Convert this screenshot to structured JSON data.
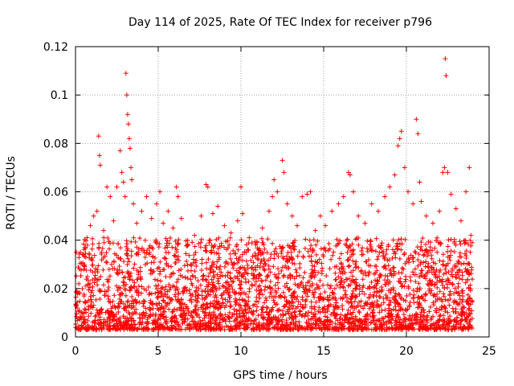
{
  "chart_data": {
    "type": "scatter",
    "title": "Day 114 of 2025, Rate Of TEC Index for receiver p796",
    "xlabel": "GPS time / hours",
    "ylabel": "ROTI / TECUs",
    "xlim": [
      0,
      25
    ],
    "ylim": [
      0,
      0.12
    ],
    "x_ticks": [
      0,
      5,
      10,
      15,
      20,
      25
    ],
    "x_tick_labels": [
      "0",
      "5",
      "10",
      "15",
      "20",
      "25"
    ],
    "y_ticks": [
      0,
      0.02,
      0.04,
      0.06,
      0.08,
      0.1,
      0.12
    ],
    "y_tick_labels": [
      "0",
      "0.02",
      "0.04",
      "0.06",
      "0.08",
      "0.1",
      "0.12"
    ],
    "grid": true,
    "marker": "+",
    "series_color": "#ff0000",
    "series": [
      {
        "name": "ROTI",
        "points": [
          [
            0.1,
            0.012
          ],
          [
            0.2,
            0.022
          ],
          [
            0.3,
            0.035
          ],
          [
            0.5,
            0.028
          ],
          [
            0.7,
            0.041
          ],
          [
            0.9,
            0.046
          ],
          [
            1.1,
            0.05
          ],
          [
            1.3,
            0.052
          ],
          [
            1.4,
            0.083
          ],
          [
            1.45,
            0.075
          ],
          [
            1.5,
            0.071
          ],
          [
            1.7,
            0.044
          ],
          [
            1.9,
            0.062
          ],
          [
            2.1,
            0.058
          ],
          [
            2.3,
            0.048
          ],
          [
            2.5,
            0.062
          ],
          [
            2.7,
            0.077
          ],
          [
            2.8,
            0.068
          ],
          [
            2.9,
            0.064
          ],
          [
            3.0,
            0.058
          ],
          [
            3.05,
            0.109
          ],
          [
            3.1,
            0.1
          ],
          [
            3.15,
            0.092
          ],
          [
            3.2,
            0.088
          ],
          [
            3.25,
            0.082
          ],
          [
            3.3,
            0.078
          ],
          [
            3.35,
            0.07
          ],
          [
            3.4,
            0.065
          ],
          [
            3.5,
            0.055
          ],
          [
            3.7,
            0.047
          ],
          [
            4.0,
            0.052
          ],
          [
            4.3,
            0.058
          ],
          [
            4.6,
            0.049
          ],
          [
            4.9,
            0.055
          ],
          [
            5.1,
            0.06
          ],
          [
            5.3,
            0.047
          ],
          [
            5.6,
            0.052
          ],
          [
            5.9,
            0.045
          ],
          [
            6.1,
            0.062
          ],
          [
            6.2,
            0.058
          ],
          [
            6.4,
            0.049
          ],
          [
            6.8,
            0.038
          ],
          [
            7.2,
            0.042
          ],
          [
            7.6,
            0.05
          ],
          [
            7.9,
            0.063
          ],
          [
            8.0,
            0.062
          ],
          [
            8.3,
            0.051
          ],
          [
            8.6,
            0.054
          ],
          [
            9.0,
            0.046
          ],
          [
            9.4,
            0.043
          ],
          [
            9.8,
            0.048
          ],
          [
            10.0,
            0.062
          ],
          [
            10.1,
            0.051
          ],
          [
            10.5,
            0.041
          ],
          [
            10.9,
            0.038
          ],
          [
            11.3,
            0.045
          ],
          [
            11.7,
            0.052
          ],
          [
            11.9,
            0.058
          ],
          [
            12.0,
            0.065
          ],
          [
            12.2,
            0.06
          ],
          [
            12.5,
            0.073
          ],
          [
            12.6,
            0.068
          ],
          [
            12.8,
            0.055
          ],
          [
            13.1,
            0.05
          ],
          [
            13.4,
            0.046
          ],
          [
            13.7,
            0.058
          ],
          [
            14.0,
            0.059
          ],
          [
            14.2,
            0.06
          ],
          [
            14.5,
            0.044
          ],
          [
            14.8,
            0.05
          ],
          [
            15.1,
            0.046
          ],
          [
            15.5,
            0.052
          ],
          [
            15.9,
            0.055
          ],
          [
            16.2,
            0.058
          ],
          [
            16.5,
            0.068
          ],
          [
            16.6,
            0.067
          ],
          [
            16.8,
            0.06
          ],
          [
            17.1,
            0.05
          ],
          [
            17.5,
            0.047
          ],
          [
            17.9,
            0.055
          ],
          [
            18.3,
            0.052
          ],
          [
            18.7,
            0.058
          ],
          [
            19.0,
            0.062
          ],
          [
            19.3,
            0.067
          ],
          [
            19.5,
            0.079
          ],
          [
            19.6,
            0.082
          ],
          [
            19.7,
            0.085
          ],
          [
            19.9,
            0.07
          ],
          [
            20.1,
            0.06
          ],
          [
            20.4,
            0.055
          ],
          [
            20.6,
            0.09
          ],
          [
            20.7,
            0.084
          ],
          [
            20.8,
            0.064
          ],
          [
            20.9,
            0.056
          ],
          [
            21.2,
            0.05
          ],
          [
            21.6,
            0.047
          ],
          [
            22.0,
            0.052
          ],
          [
            22.2,
            0.068
          ],
          [
            22.3,
            0.07
          ],
          [
            22.35,
            0.115
          ],
          [
            22.4,
            0.108
          ],
          [
            22.5,
            0.068
          ],
          [
            22.7,
            0.059
          ],
          [
            23.0,
            0.053
          ],
          [
            23.3,
            0.048
          ],
          [
            23.6,
            0.06
          ],
          [
            23.8,
            0.07
          ],
          [
            23.9,
            0.042
          ]
        ]
      }
    ]
  }
}
